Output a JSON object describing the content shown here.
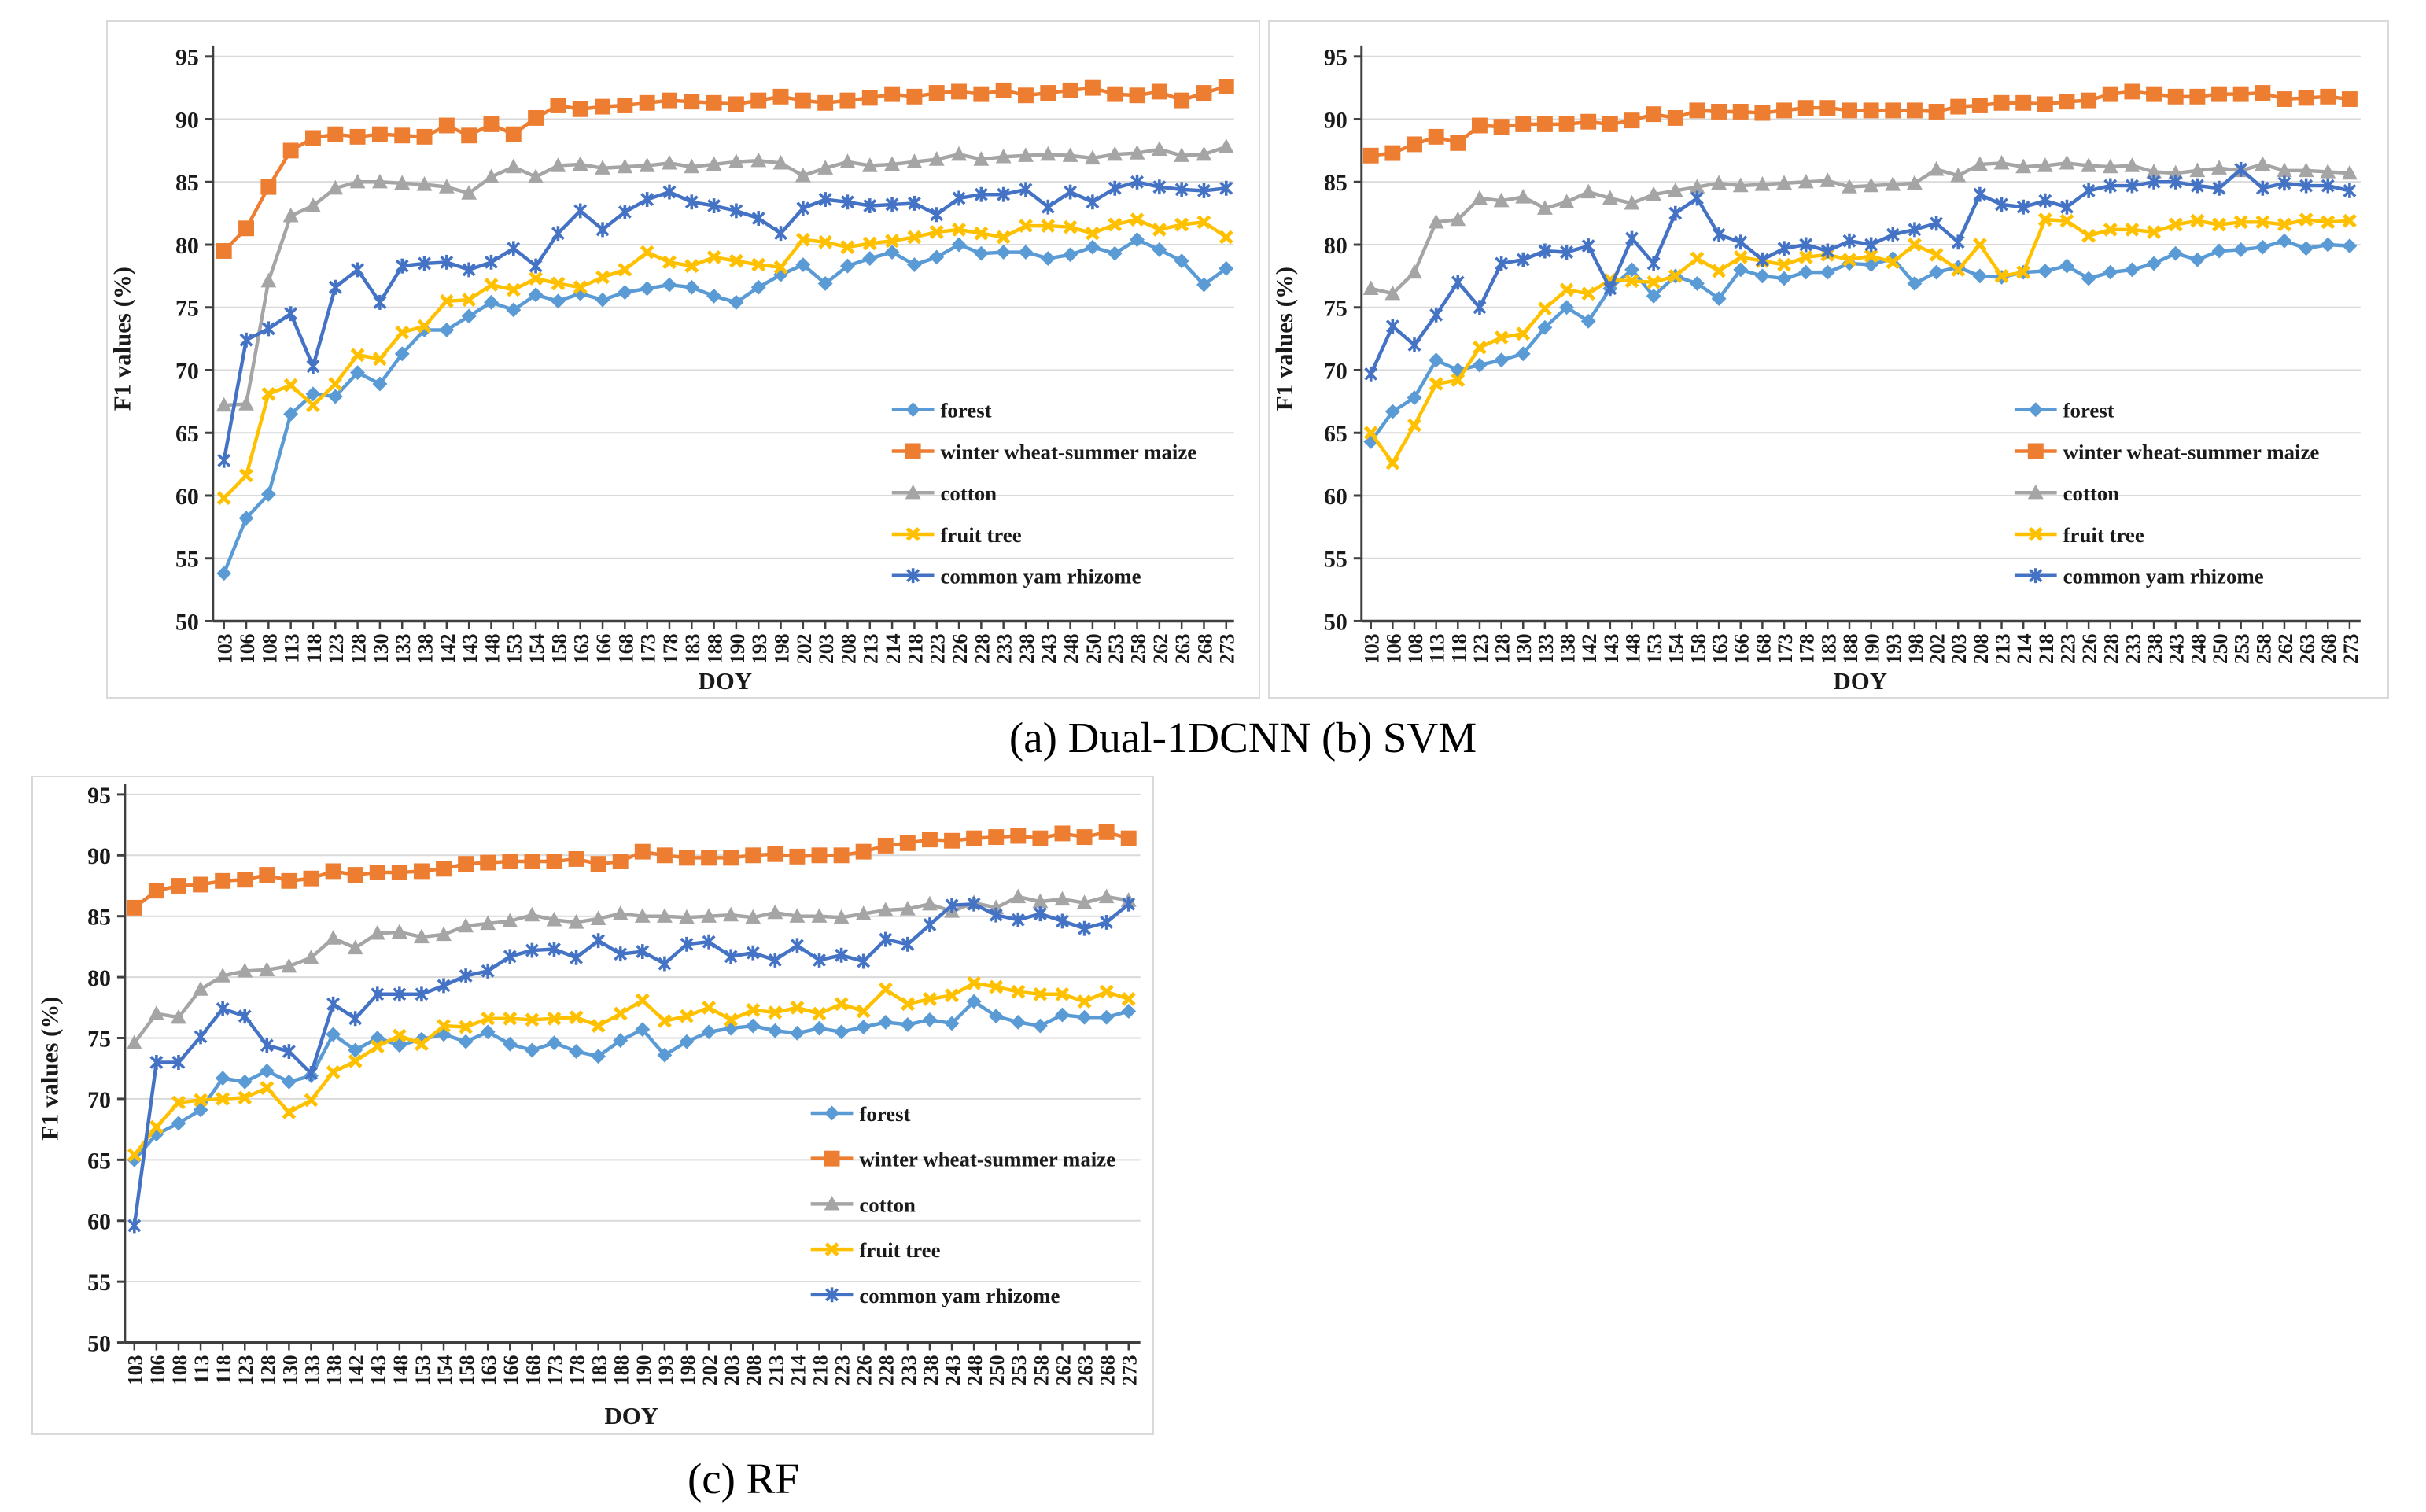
{
  "figure": {
    "background": "#ffffff",
    "grid_color": "#d9d9d9",
    "axis_color": "#404040",
    "text_color": "#1a1a1a"
  },
  "captions": {
    "ab": "(a) Dual-1DCNN (b) SVM",
    "c": "(c) RF"
  },
  "chart_data": [
    {
      "id": "a",
      "panel_label": "(a) Dual-1DCNN",
      "type": "line",
      "xlabel": "DOY",
      "ylabel": "F1 values (%)",
      "ylim": [
        50,
        95
      ],
      "ytick_step": 5,
      "grid": true,
      "legend_position": "inside-right",
      "categories": [
        "103",
        "106",
        "108",
        "113",
        "118",
        "123",
        "128",
        "130",
        "133",
        "138",
        "142",
        "143",
        "148",
        "153",
        "154",
        "158",
        "163",
        "166",
        "168",
        "173",
        "178",
        "183",
        "188",
        "190",
        "193",
        "198",
        "202",
        "203",
        "208",
        "213",
        "214",
        "218",
        "223",
        "226",
        "228",
        "233",
        "238",
        "243",
        "248",
        "250",
        "253",
        "258",
        "262",
        "263",
        "268",
        "273"
      ],
      "series": [
        {
          "name": "forest",
          "color": "#5B9BD5",
          "marker": "diamond",
          "values": [
            53.8,
            58.2,
            60.1,
            66.5,
            68.1,
            67.9,
            69.8,
            68.9,
            71.3,
            73.2,
            73.2,
            74.3,
            75.4,
            74.8,
            76.0,
            75.5,
            76.1,
            75.6,
            76.2,
            76.5,
            76.8,
            76.6,
            75.9,
            75.4,
            76.6,
            77.6,
            78.4,
            76.9,
            78.3,
            78.9,
            79.4,
            78.4,
            79.0,
            80.0,
            79.3,
            79.4,
            79.4,
            78.9,
            79.2,
            79.8,
            79.3,
            80.4,
            79.6,
            78.7,
            76.8,
            78.1
          ]
        },
        {
          "name": "winter wheat-summer maize",
          "color": "#ED7D31",
          "marker": "square",
          "values": [
            79.5,
            81.3,
            84.6,
            87.5,
            88.5,
            88.8,
            88.6,
            88.8,
            88.7,
            88.6,
            89.5,
            88.7,
            89.6,
            88.8,
            90.1,
            91.1,
            90.8,
            91.0,
            91.1,
            91.3,
            91.5,
            91.4,
            91.3,
            91.2,
            91.5,
            91.8,
            91.5,
            91.3,
            91.5,
            91.7,
            92.0,
            91.8,
            92.1,
            92.2,
            92.0,
            92.3,
            91.9,
            92.1,
            92.3,
            92.5,
            92.0,
            91.9,
            92.2,
            91.5,
            92.1,
            92.6
          ]
        },
        {
          "name": "cotton",
          "color": "#A5A5A5",
          "marker": "triangle",
          "values": [
            67.2,
            67.3,
            77.1,
            82.3,
            83.1,
            84.5,
            85.0,
            85.0,
            84.9,
            84.8,
            84.6,
            84.1,
            85.4,
            86.2,
            85.4,
            86.3,
            86.4,
            86.1,
            86.2,
            86.3,
            86.5,
            86.2,
            86.4,
            86.6,
            86.7,
            86.5,
            85.5,
            86.1,
            86.6,
            86.3,
            86.4,
            86.6,
            86.8,
            87.2,
            86.8,
            87.0,
            87.1,
            87.2,
            87.1,
            86.9,
            87.2,
            87.3,
            87.6,
            87.1,
            87.2,
            87.8
          ]
        },
        {
          "name": "fruit tree",
          "color": "#FFC000",
          "marker": "x",
          "values": [
            59.8,
            61.6,
            68.1,
            68.8,
            67.2,
            68.9,
            71.2,
            70.9,
            73.0,
            73.5,
            75.5,
            75.6,
            76.8,
            76.4,
            77.3,
            76.9,
            76.6,
            77.4,
            78.0,
            79.4,
            78.6,
            78.3,
            79.0,
            78.7,
            78.4,
            78.2,
            80.4,
            80.2,
            79.8,
            80.1,
            80.3,
            80.6,
            81.0,
            81.2,
            80.9,
            80.6,
            81.5,
            81.5,
            81.4,
            80.9,
            81.6,
            82.0,
            81.2,
            81.6,
            81.8,
            80.6
          ]
        },
        {
          "name": "common yam rhizome",
          "color": "#4472C4",
          "marker": "asterisk",
          "values": [
            62.8,
            72.4,
            73.3,
            74.5,
            70.3,
            76.6,
            78.0,
            75.4,
            78.3,
            78.5,
            78.6,
            78.0,
            78.6,
            79.7,
            78.3,
            80.9,
            82.7,
            81.2,
            82.6,
            83.6,
            84.2,
            83.4,
            83.1,
            82.7,
            82.1,
            80.9,
            82.9,
            83.6,
            83.4,
            83.1,
            83.2,
            83.3,
            82.4,
            83.7,
            84.0,
            84.0,
            84.4,
            83.0,
            84.2,
            83.4,
            84.5,
            85.0,
            84.6,
            84.4,
            84.3,
            84.5
          ]
        }
      ]
    },
    {
      "id": "b",
      "panel_label": "(b) SVM",
      "type": "line",
      "xlabel": "DOY",
      "ylabel": "F1 values (%)",
      "ylim": [
        50,
        95
      ],
      "ytick_step": 5,
      "grid": true,
      "legend_position": "inside-right",
      "categories": [
        "103",
        "106",
        "108",
        "113",
        "118",
        "123",
        "128",
        "130",
        "133",
        "138",
        "142",
        "143",
        "148",
        "153",
        "154",
        "158",
        "163",
        "166",
        "168",
        "173",
        "178",
        "183",
        "188",
        "190",
        "193",
        "198",
        "202",
        "203",
        "208",
        "213",
        "214",
        "218",
        "223",
        "226",
        "228",
        "233",
        "238",
        "243",
        "248",
        "250",
        "253",
        "258",
        "262",
        "263",
        "268",
        "273"
      ],
      "series": [
        {
          "name": "forest",
          "color": "#5B9BD5",
          "marker": "diamond",
          "values": [
            64.3,
            66.7,
            67.8,
            70.8,
            70.0,
            70.4,
            70.8,
            71.3,
            73.4,
            75.0,
            73.9,
            76.5,
            78.0,
            75.9,
            77.5,
            76.9,
            75.7,
            78.0,
            77.5,
            77.3,
            77.8,
            77.8,
            78.5,
            78.4,
            78.9,
            76.9,
            77.8,
            78.2,
            77.5,
            77.4,
            77.8,
            77.9,
            78.3,
            77.3,
            77.8,
            78.0,
            78.5,
            79.3,
            78.8,
            79.5,
            79.6,
            79.8,
            80.3,
            79.7,
            80.0,
            79.9
          ]
        },
        {
          "name": "winter wheat-summer maize",
          "color": "#ED7D31",
          "marker": "square",
          "values": [
            87.1,
            87.3,
            88.0,
            88.6,
            88.1,
            89.5,
            89.4,
            89.6,
            89.6,
            89.6,
            89.8,
            89.6,
            89.9,
            90.4,
            90.1,
            90.7,
            90.6,
            90.6,
            90.5,
            90.7,
            90.9,
            90.9,
            90.7,
            90.7,
            90.7,
            90.7,
            90.6,
            91.0,
            91.1,
            91.3,
            91.3,
            91.2,
            91.4,
            91.5,
            92.0,
            92.2,
            92.0,
            91.8,
            91.8,
            92.0,
            92.0,
            92.1,
            91.6,
            91.7,
            91.8,
            91.6
          ]
        },
        {
          "name": "cotton",
          "color": "#A5A5A5",
          "marker": "triangle",
          "values": [
            76.5,
            76.1,
            77.8,
            81.8,
            82.0,
            83.7,
            83.5,
            83.8,
            82.9,
            83.4,
            84.2,
            83.7,
            83.3,
            84.0,
            84.3,
            84.6,
            84.9,
            84.7,
            84.8,
            84.9,
            85.0,
            85.1,
            84.6,
            84.7,
            84.8,
            84.9,
            86.0,
            85.5,
            86.4,
            86.5,
            86.2,
            86.3,
            86.5,
            86.3,
            86.2,
            86.3,
            85.8,
            85.7,
            85.9,
            86.1,
            85.9,
            86.4,
            85.9,
            85.9,
            85.8,
            85.7
          ]
        },
        {
          "name": "fruit tree",
          "color": "#FFC000",
          "marker": "x",
          "values": [
            65.0,
            62.6,
            65.6,
            68.9,
            69.2,
            71.8,
            72.6,
            72.9,
            74.9,
            76.4,
            76.1,
            77.2,
            77.1,
            77.0,
            77.5,
            78.9,
            77.9,
            79.0,
            78.7,
            78.4,
            79.0,
            79.2,
            78.8,
            79.1,
            78.6,
            80.0,
            79.2,
            78.0,
            80.0,
            77.5,
            77.8,
            82.0,
            81.9,
            80.7,
            81.2,
            81.2,
            81.0,
            81.6,
            81.9,
            81.6,
            81.8,
            81.8,
            81.6,
            82.0,
            81.8,
            81.9
          ]
        },
        {
          "name": "common yam rhizome",
          "color": "#4472C4",
          "marker": "asterisk",
          "values": [
            69.7,
            73.5,
            72.0,
            74.4,
            77.0,
            75.0,
            78.5,
            78.8,
            79.5,
            79.4,
            79.9,
            76.5,
            80.5,
            78.5,
            82.5,
            83.7,
            80.8,
            80.2,
            78.8,
            79.7,
            80.0,
            79.5,
            80.3,
            80.0,
            80.8,
            81.2,
            81.7,
            80.2,
            84.0,
            83.2,
            83.0,
            83.5,
            83.0,
            84.3,
            84.7,
            84.7,
            85.0,
            85.0,
            84.7,
            84.5,
            86.0,
            84.5,
            84.9,
            84.7,
            84.7,
            84.3
          ]
        }
      ]
    },
    {
      "id": "c",
      "panel_label": "(c) RF",
      "type": "line",
      "xlabel": "DOY",
      "ylabel": "F1 values (%)",
      "ylim": [
        50,
        95
      ],
      "ytick_step": 5,
      "grid": true,
      "legend_position": "inside-right",
      "categories": [
        "103",
        "106",
        "108",
        "113",
        "118",
        "123",
        "128",
        "130",
        "133",
        "138",
        "142",
        "143",
        "148",
        "153",
        "154",
        "158",
        "163",
        "166",
        "168",
        "173",
        "178",
        "183",
        "188",
        "190",
        "193",
        "198",
        "202",
        "203",
        "208",
        "213",
        "214",
        "218",
        "223",
        "226",
        "228",
        "233",
        "238",
        "243",
        "248",
        "250",
        "253",
        "258",
        "262",
        "263",
        "268",
        "273"
      ],
      "series": [
        {
          "name": "forest",
          "color": "#5B9BD5",
          "marker": "diamond",
          "values": [
            65.0,
            67.1,
            68.0,
            69.1,
            71.7,
            71.4,
            72.3,
            71.4,
            71.9,
            75.3,
            74.0,
            75.0,
            74.4,
            74.9,
            75.3,
            74.7,
            75.5,
            74.5,
            74.0,
            74.6,
            73.9,
            73.5,
            74.8,
            75.7,
            73.6,
            74.7,
            75.5,
            75.8,
            76.0,
            75.6,
            75.4,
            75.8,
            75.5,
            75.9,
            76.3,
            76.1,
            76.5,
            76.2,
            78.0,
            76.8,
            76.3,
            76.0,
            76.9,
            76.7,
            76.7,
            77.2
          ]
        },
        {
          "name": "winter wheat-summer maize",
          "color": "#ED7D31",
          "marker": "square",
          "values": [
            85.7,
            87.1,
            87.5,
            87.6,
            87.9,
            88.0,
            88.4,
            87.9,
            88.1,
            88.7,
            88.4,
            88.6,
            88.6,
            88.7,
            88.9,
            89.3,
            89.4,
            89.5,
            89.5,
            89.5,
            89.7,
            89.3,
            89.5,
            90.3,
            90.0,
            89.8,
            89.8,
            89.8,
            90.0,
            90.1,
            89.9,
            90.0,
            90.0,
            90.3,
            90.8,
            91.0,
            91.3,
            91.2,
            91.4,
            91.5,
            91.6,
            91.4,
            91.8,
            91.5,
            91.9,
            91.4
          ]
        },
        {
          "name": "cotton",
          "color": "#A5A5A5",
          "marker": "triangle",
          "values": [
            74.6,
            77.0,
            76.7,
            79.0,
            80.1,
            80.5,
            80.6,
            80.9,
            81.6,
            83.2,
            82.4,
            83.6,
            83.7,
            83.3,
            83.5,
            84.2,
            84.4,
            84.6,
            85.1,
            84.7,
            84.5,
            84.8,
            85.2,
            85.0,
            85.0,
            84.9,
            85.0,
            85.1,
            84.9,
            85.3,
            85.0,
            85.0,
            84.9,
            85.2,
            85.5,
            85.6,
            86.0,
            85.4,
            86.1,
            85.7,
            86.6,
            86.2,
            86.4,
            86.1,
            86.6,
            86.3
          ]
        },
        {
          "name": "fruit tree",
          "color": "#FFC000",
          "marker": "x",
          "values": [
            65.4,
            67.7,
            69.7,
            69.9,
            70.0,
            70.1,
            70.9,
            68.9,
            69.9,
            72.2,
            73.1,
            74.3,
            75.2,
            74.5,
            76.0,
            75.9,
            76.6,
            76.6,
            76.5,
            76.6,
            76.7,
            76.0,
            77.0,
            78.1,
            76.4,
            76.8,
            77.5,
            76.5,
            77.3,
            77.1,
            77.5,
            77.0,
            77.8,
            77.2,
            79.0,
            77.8,
            78.2,
            78.5,
            79.5,
            79.2,
            78.8,
            78.6,
            78.6,
            78.0,
            78.8,
            78.2
          ]
        },
        {
          "name": "common yam rhizome",
          "color": "#4472C4",
          "marker": "asterisk",
          "values": [
            59.6,
            73.0,
            73.0,
            75.1,
            77.4,
            76.8,
            74.4,
            73.9,
            72.1,
            77.8,
            76.6,
            78.6,
            78.6,
            78.6,
            79.3,
            80.1,
            80.5,
            81.7,
            82.2,
            82.3,
            81.6,
            83.0,
            81.9,
            82.1,
            81.1,
            82.7,
            82.9,
            81.7,
            82.0,
            81.4,
            82.6,
            81.4,
            81.8,
            81.3,
            83.1,
            82.7,
            84.3,
            85.9,
            86.0,
            85.1,
            84.7,
            85.2,
            84.6,
            84.0,
            84.5,
            86.0
          ]
        }
      ]
    }
  ]
}
